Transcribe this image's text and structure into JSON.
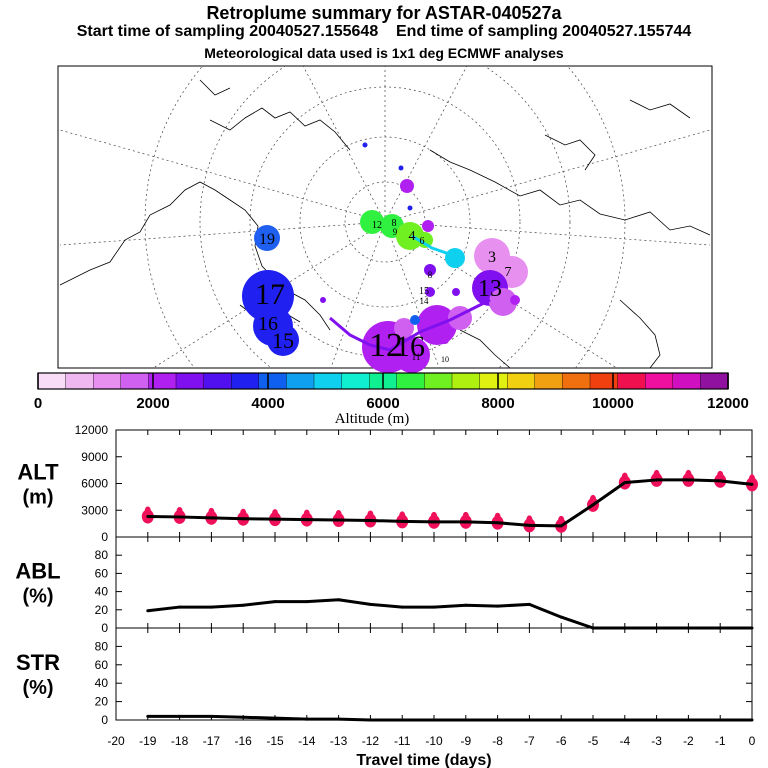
{
  "header": {
    "title": "Retroplume summary for ASTAR-040527a",
    "start_label": "Start time of sampling 20040527.155648",
    "end_label": "End time of sampling 20040527.155744",
    "subtitle": "Meteorological data used is 1x1 deg ECMWF analyses"
  },
  "map": {
    "number_labels": [
      "12",
      "8",
      "9",
      "4",
      "6",
      "19",
      "17",
      "16",
      "15",
      "3",
      "7",
      "8",
      "13",
      "16",
      "15",
      "14",
      "12",
      "10",
      "11"
    ]
  },
  "colorbar": {
    "title": "Altitude (m)",
    "ticks": [
      "0",
      "2000",
      "4000",
      "6000",
      "8000",
      "10000",
      "12000"
    ],
    "colors": [
      "#f8dcf8",
      "#f0b8f0",
      "#e890f0",
      "#d060f0",
      "#b020f0",
      "#8010f0",
      "#5010f0",
      "#2020f0",
      "#1060f0",
      "#10a0f0",
      "#10d0f0",
      "#10f0d0",
      "#10f090",
      "#30f040",
      "#70f020",
      "#b0f010",
      "#e0f010",
      "#f0d010",
      "#f0a010",
      "#f07010",
      "#f04010",
      "#f01050",
      "#f010a0",
      "#d010c0",
      "#9010a0"
    ]
  },
  "chart_data": [
    {
      "type": "line",
      "panel": "ALT",
      "ylabel": "ALT",
      "yunit": "(m)",
      "ylim": [
        0,
        12000
      ],
      "yticks": [
        "0",
        "3000",
        "6000",
        "9000",
        "12000"
      ],
      "x": [
        -19,
        -18,
        -17,
        -16,
        -15,
        -14,
        -13,
        -12,
        -11,
        -10,
        -9,
        -8,
        -7,
        -6,
        -5,
        -4,
        -3,
        -2,
        -1,
        0
      ],
      "series": [
        {
          "name": "mean altitude",
          "values": [
            2300,
            2250,
            2150,
            2050,
            2000,
            1950,
            1900,
            1850,
            1750,
            1700,
            1700,
            1600,
            1300,
            1250,
            3600,
            6100,
            6400,
            6400,
            6300,
            5900
          ]
        }
      ],
      "scatter_color": "#f0105a"
    },
    {
      "type": "line",
      "panel": "ABL",
      "ylabel": "ABL",
      "yunit": "(%)",
      "ylim": [
        0,
        100
      ],
      "yticks": [
        "0",
        "20",
        "40",
        "60",
        "80"
      ],
      "x": [
        -19,
        -18,
        -17,
        -16,
        -15,
        -14,
        -13,
        -12,
        -11,
        -10,
        -9,
        -8,
        -7,
        -6,
        -5,
        -4,
        -3,
        -2,
        -1,
        0
      ],
      "series": [
        {
          "name": "ABL fraction",
          "values": [
            19,
            23,
            23,
            25,
            29,
            29,
            31,
            26,
            23,
            23,
            25,
            24,
            26,
            12,
            0,
            0,
            0,
            0,
            0,
            0
          ]
        }
      ]
    },
    {
      "type": "line",
      "panel": "STR",
      "ylabel": "STR",
      "yunit": "(%)",
      "ylim": [
        0,
        100
      ],
      "yticks": [
        "0",
        "20",
        "40",
        "60",
        "80"
      ],
      "x": [
        -19,
        -18,
        -17,
        -16,
        -15,
        -14,
        -13,
        -12,
        -11,
        -10,
        -9,
        -8,
        -7,
        -6,
        -5,
        -4,
        -3,
        -2,
        -1,
        0
      ],
      "series": [
        {
          "name": "stratospheric fraction",
          "values": [
            4,
            4,
            4,
            3,
            2,
            1,
            1,
            0,
            0,
            0,
            0,
            0,
            0,
            0,
            0,
            0,
            0,
            0,
            0,
            0
          ]
        }
      ],
      "xlabel": "Travel time (days)",
      "xlim": [
        -20,
        0
      ],
      "xticks": [
        "-20",
        "-19",
        "-18",
        "-17",
        "-16",
        "-15",
        "-14",
        "-13",
        "-12",
        "-11",
        "-10",
        "-9",
        "-8",
        "-7",
        "-6",
        "-5",
        "-4",
        "-3",
        "-2",
        "-1",
        "0"
      ]
    }
  ]
}
